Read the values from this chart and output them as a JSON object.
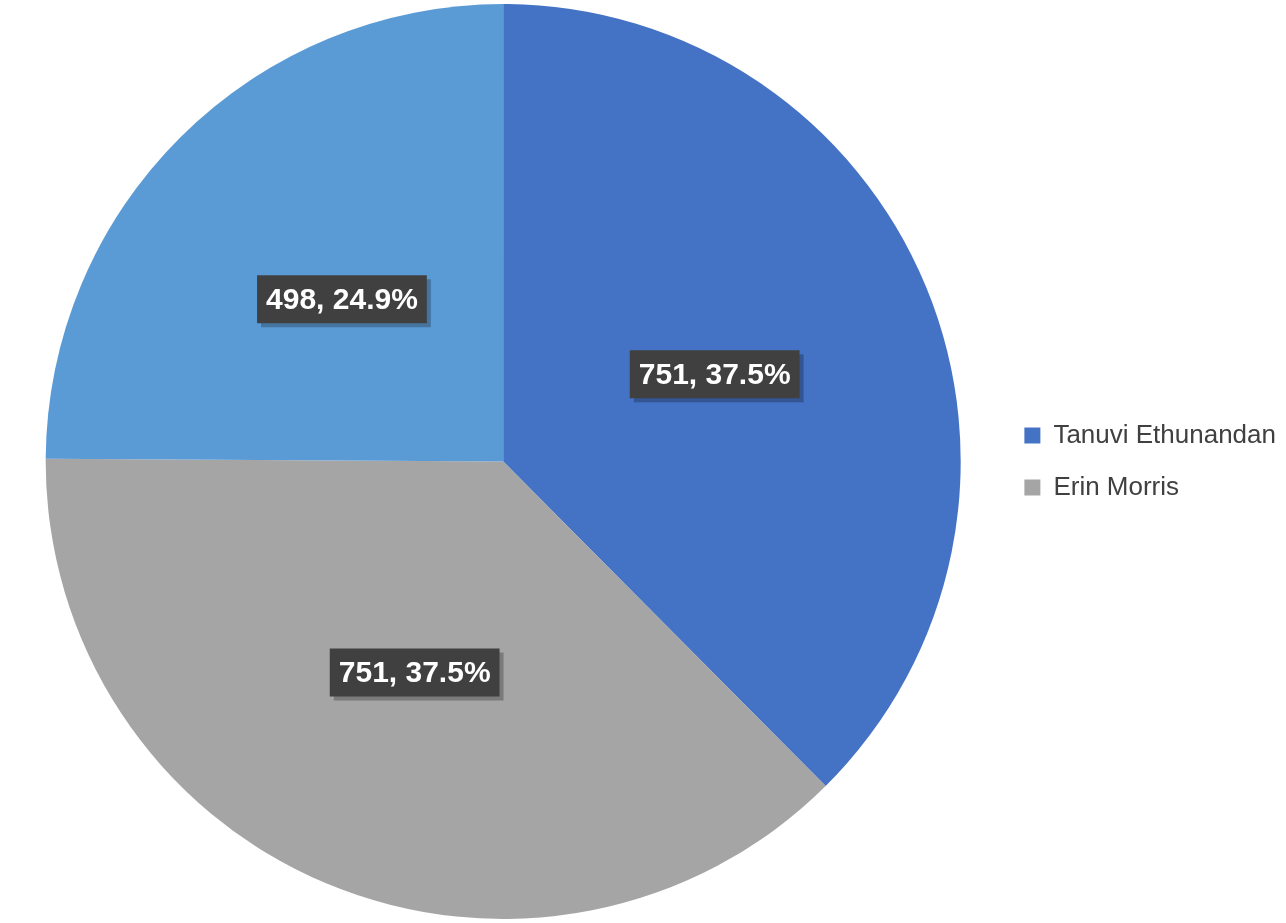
{
  "chart_data": {
    "type": "pie",
    "categories": [
      "Tanuvi Ethunandan",
      "Erin Morris",
      null
    ],
    "values": [
      751,
      751,
      498
    ],
    "colors": [
      "#4472c4",
      "#a5a5a5",
      "#5b9bd5"
    ],
    "value_labels": [
      "751, 37.5%",
      "751, 37.5%",
      "498, 24.9%"
    ],
    "legend": "right"
  }
}
